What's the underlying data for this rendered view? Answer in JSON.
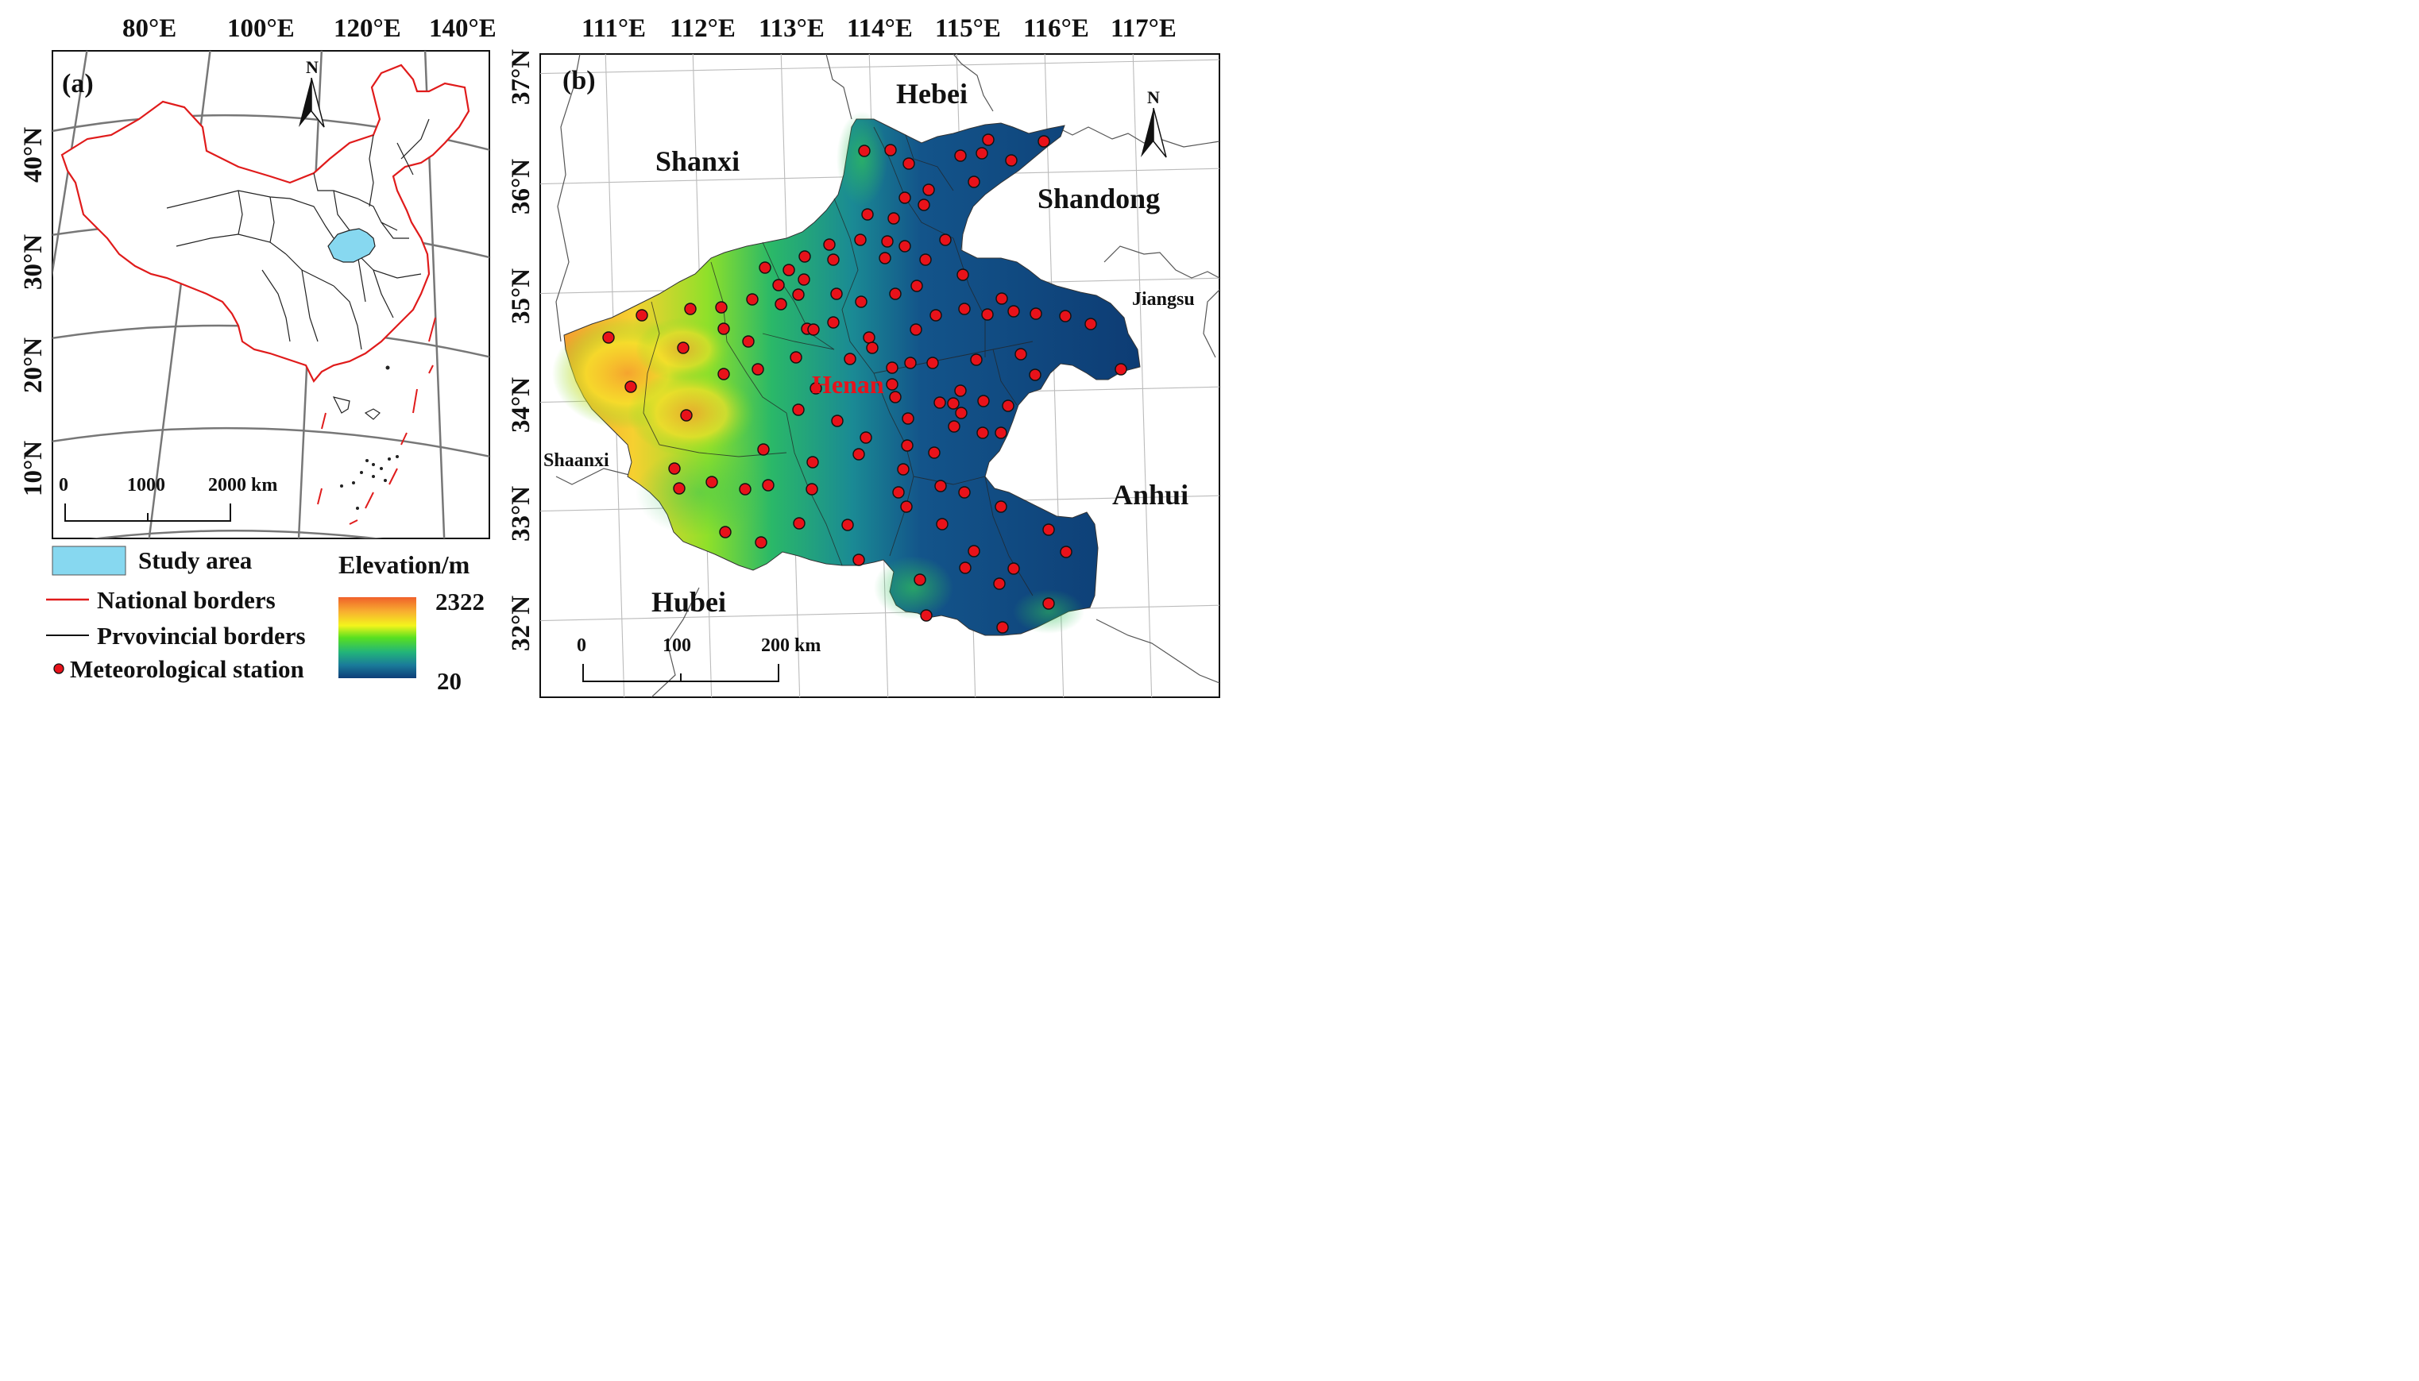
{
  "panel_a": {
    "label": "(a)",
    "top_lon_labels": [
      "80°E",
      "100°E",
      "120°E",
      "140°E"
    ],
    "left_lat_labels": [
      "40°N",
      "30°N",
      "20°N",
      "10°N"
    ],
    "north_arrow": "N",
    "scale_labels": [
      "0",
      "1000",
      "2000 km"
    ],
    "study_area_color": "#87d8f0",
    "national_border_color": "#e01b1b"
  },
  "panel_b": {
    "label": "(b)",
    "top_lon_labels": [
      "111°E",
      "112°E",
      "113°E",
      "114°E",
      "115°E",
      "116°E",
      "117°E"
    ],
    "left_lat_labels": [
      "37°N",
      "36°N",
      "35°N",
      "34°N",
      "33°N",
      "32°N"
    ],
    "north_arrow": "N",
    "province_labels": {
      "hebei": "Hebei",
      "shanxi": "Shanxi",
      "shandong": "Shandong",
      "jiangsu": "Jiangsu",
      "shaanxi": "Shaanxi",
      "anhui": "Anhui",
      "hubei": "Hubei",
      "henan": "Henan"
    },
    "scale_labels": [
      "0",
      "100",
      "200 km"
    ],
    "station_color": "#e8121a"
  },
  "legend": {
    "study_area": "Study area",
    "national_borders": "National borders",
    "provincial_borders": "Prvovincial borders",
    "station": "Meteorological station",
    "elevation_title": "Elevation/m",
    "elevation_max": "2322",
    "elevation_min": "20",
    "ramp_colors": [
      "#f0602a",
      "#f8b030",
      "#f4f41c",
      "#58e020",
      "#22b47a",
      "#1a7a9a",
      "#0e3e78"
    ]
  }
}
